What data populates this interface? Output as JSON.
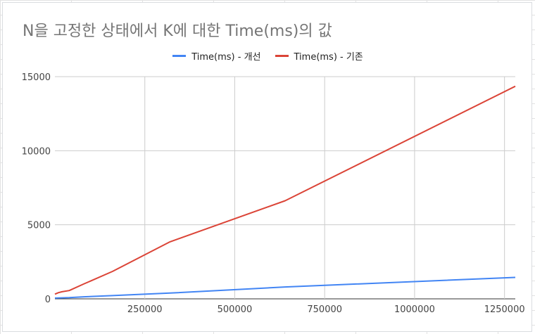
{
  "chart_data": {
    "type": "line",
    "title": "N을 고정한 상태에서 K에 대한 Time(ms)의 값",
    "xlabel": "",
    "ylabel": "",
    "xlim": [
      0,
      1280000
    ],
    "ylim": [
      0,
      15000
    ],
    "x_ticks": [
      250000,
      500000,
      750000,
      1000000,
      1250000
    ],
    "y_ticks": [
      0,
      5000,
      10000,
      15000
    ],
    "x_tick_labels": [
      "250000",
      "500000",
      "750000",
      "1000000",
      "1250000"
    ],
    "y_tick_labels": [
      "0",
      "5000",
      "10000",
      "15000"
    ],
    "grid": true,
    "legend_position": "top",
    "series": [
      {
        "name": "Time(ms) - 개선",
        "color": "#4285f4",
        "points": [
          [
            0,
            50
          ],
          [
            40000,
            80
          ],
          [
            80000,
            140
          ],
          [
            160000,
            220
          ],
          [
            320000,
            390
          ],
          [
            640000,
            800
          ],
          [
            1280000,
            1450
          ]
        ]
      },
      {
        "name": "Time(ms) - 기존",
        "color": "#db4437",
        "points": [
          [
            0,
            320
          ],
          [
            10000,
            420
          ],
          [
            20000,
            480
          ],
          [
            40000,
            560
          ],
          [
            80000,
            1000
          ],
          [
            160000,
            1850
          ],
          [
            320000,
            3850
          ],
          [
            640000,
            6620
          ],
          [
            1280000,
            14350
          ]
        ]
      }
    ]
  }
}
